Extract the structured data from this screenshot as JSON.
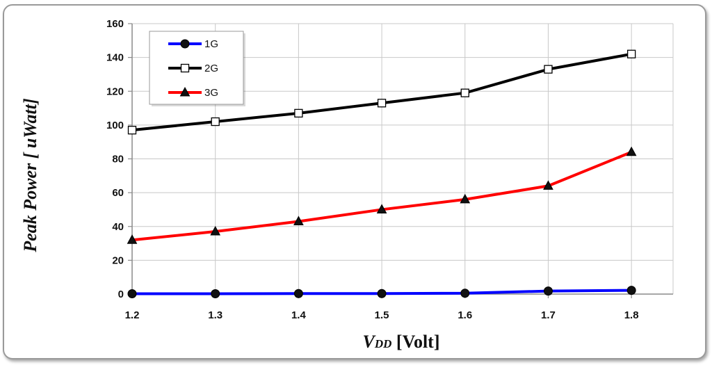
{
  "chart_data": {
    "type": "line",
    "xlabel_main": "V",
    "xlabel_sub": "DD",
    "xlabel_unit": " [Volt]",
    "ylabel": "Peak Power [ uWatt]",
    "x": [
      1.2,
      1.3,
      1.4,
      1.5,
      1.6,
      1.7,
      1.8
    ],
    "x_tick_labels": [
      "1.2",
      "1.3",
      "1.4",
      "1.5",
      "1.6",
      "1.7",
      "1.8"
    ],
    "ylim": [
      0,
      160
    ],
    "y_ticks": [
      0,
      20,
      40,
      60,
      80,
      100,
      120,
      140,
      160
    ],
    "grid": true,
    "legend_position": "top-left",
    "series": [
      {
        "name": "1G",
        "color": "#0000ff",
        "marker": "circle",
        "values": [
          0.2,
          0.2,
          0.3,
          0.3,
          0.5,
          1.8,
          2.2
        ]
      },
      {
        "name": "2G",
        "color": "#000000",
        "marker": "open-square",
        "values": [
          97,
          102,
          107,
          113,
          119,
          133,
          142
        ]
      },
      {
        "name": "3G",
        "color": "#ff0000",
        "marker": "triangle",
        "values": [
          32,
          37,
          43,
          50,
          56,
          64,
          84
        ]
      }
    ]
  }
}
